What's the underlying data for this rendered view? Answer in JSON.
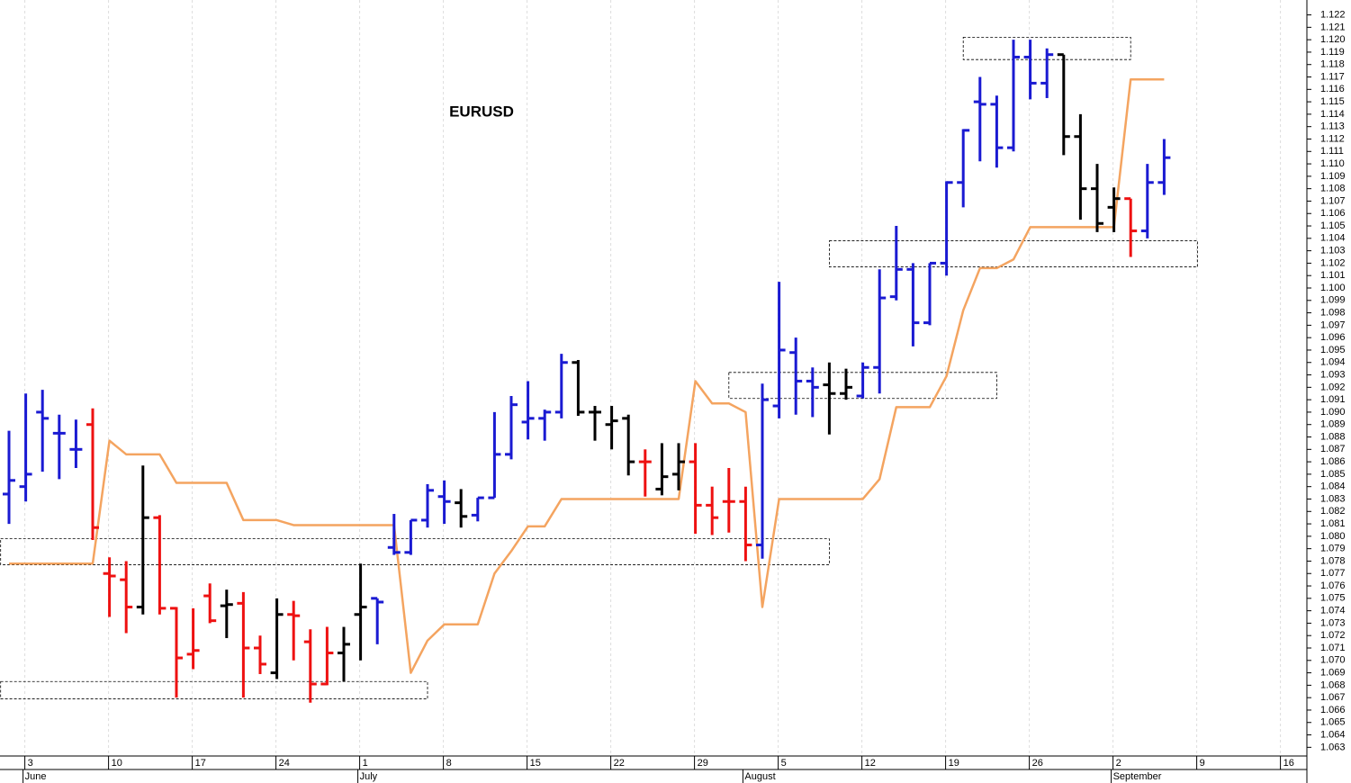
{
  "chart_data": {
    "type": "ohlc",
    "title": "EURUSD",
    "categories": [
      null,
      "3",
      null,
      null,
      null,
      null,
      "10",
      null,
      null,
      null,
      null,
      "17",
      null,
      null,
      null,
      null,
      "24",
      null,
      null,
      null,
      null,
      "1",
      null,
      null,
      null,
      null,
      "8",
      null,
      null,
      null,
      null,
      "15",
      null,
      null,
      null,
      null,
      "22",
      null,
      null,
      null,
      null,
      "29",
      null,
      null,
      null,
      null,
      "5",
      null,
      null,
      null,
      null,
      "12",
      null,
      null,
      null,
      null,
      "19",
      null,
      null,
      null,
      null,
      "26",
      null,
      null,
      null,
      null,
      "2",
      null,
      null,
      null,
      null,
      "9",
      null,
      null,
      null,
      null,
      "16",
      null
    ],
    "months": [
      null,
      "June",
      null,
      null,
      null,
      null,
      null,
      null,
      null,
      null,
      null,
      null,
      null,
      null,
      null,
      null,
      null,
      null,
      null,
      null,
      null,
      "July",
      null,
      null,
      null,
      null,
      null,
      null,
      null,
      null,
      null,
      null,
      null,
      null,
      null,
      null,
      null,
      null,
      null,
      null,
      null,
      null,
      null,
      null,
      "August",
      null,
      null,
      null,
      null,
      null,
      null,
      null,
      null,
      null,
      null,
      null,
      null,
      null,
      null,
      null,
      null,
      null,
      null,
      null,
      null,
      null,
      "September",
      null,
      null,
      null,
      null,
      null,
      null,
      null,
      null,
      null,
      null,
      null
    ],
    "open": [
      1.0834,
      1.084,
      1.09,
      1.0883,
      1.087,
      1.089,
      1.077,
      1.0765,
      1.0743,
      1.0815,
      1.0742,
      1.0705,
      1.0752,
      1.0744,
      1.0746,
      1.071,
      1.069,
      1.0737,
      1.0715,
      1.0681,
      1.0706,
      1.0737,
      1.075,
      1.0791,
      1.0787,
      1.0813,
      1.0832,
      1.0827,
      1.0817,
      1.0831,
      1.0866,
      1.0892,
      1.0895,
      1.09,
      1.094,
      1.09,
      1.089,
      1.0895,
      1.086,
      1.0838,
      1.085,
      1.086,
      1.0825,
      1.0828,
      1.0828,
      1.0793,
      1.0905,
      1.0948,
      1.0925,
      1.0922,
      1.0915,
      1.0913,
      1.0936,
      1.0993,
      1.1015,
      1.0972,
      1.102,
      1.1085,
      1.115,
      1.1148,
      1.1113,
      1.1186,
      1.1165,
      1.1188,
      1.1122,
      1.108,
      1.1065,
      1.1072,
      1.1046,
      1.1085,
      null,
      null,
      null,
      null,
      null,
      null,
      null,
      null
    ],
    "high": [
      1.0885,
      1.0915,
      1.0918,
      1.0898,
      1.0894,
      1.0903,
      1.0783,
      1.078,
      1.0857,
      1.0817,
      1.0743,
      1.0742,
      1.0762,
      1.0757,
      1.0755,
      1.072,
      1.075,
      1.0748,
      1.0725,
      1.0727,
      1.0727,
      1.0778,
      1.075,
      1.0818,
      1.0813,
      1.0842,
      1.0845,
      1.0838,
      1.0831,
      1.09,
      1.0913,
      1.0925,
      1.0902,
      1.0947,
      1.0942,
      1.0905,
      1.0905,
      1.0898,
      1.087,
      1.0875,
      1.0875,
      1.0875,
      1.084,
      1.0855,
      1.084,
      1.0923,
      1.1005,
      1.096,
      1.0936,
      1.094,
      1.0935,
      1.094,
      1.1015,
      1.105,
      1.102,
      1.102,
      1.1086,
      1.1128,
      1.117,
      1.1155,
      1.12,
      1.12,
      1.1193,
      1.1188,
      1.114,
      1.11,
      1.1081,
      1.1072,
      1.11,
      1.112,
      null,
      null,
      null,
      null,
      null,
      null,
      null,
      null
    ],
    "low": [
      1.081,
      1.0828,
      1.0852,
      1.0846,
      1.0855,
      1.0797,
      1.0735,
      1.0722,
      1.0737,
      1.0737,
      1.067,
      1.0693,
      1.073,
      1.0718,
      1.067,
      1.0689,
      1.0685,
      1.07,
      1.0666,
      1.068,
      1.0683,
      1.07,
      1.0713,
      1.0785,
      1.0785,
      1.0807,
      1.081,
      1.0807,
      1.0812,
      1.0831,
      1.0862,
      1.0878,
      1.0877,
      1.0895,
      1.0897,
      1.0877,
      1.087,
      1.0849,
      1.0832,
      1.0833,
      1.0837,
      1.0802,
      1.0801,
      1.0803,
      1.078,
      1.0782,
      1.0895,
      1.0898,
      1.0896,
      1.0882,
      1.091,
      1.0911,
      1.0915,
      1.099,
      1.0953,
      1.097,
      1.101,
      1.1065,
      1.1102,
      1.1097,
      1.111,
      1.1152,
      1.1153,
      1.1107,
      1.1055,
      1.1045,
      1.1045,
      1.1025,
      1.104,
      1.1075,
      null,
      null,
      null,
      null,
      null,
      null,
      null,
      null
    ],
    "close": [
      1.0845,
      1.085,
      1.0895,
      1.0883,
      1.087,
      1.0807,
      1.0768,
      1.0743,
      1.0815,
      1.0742,
      1.0702,
      1.0708,
      1.0732,
      1.0745,
      1.071,
      1.0697,
      1.0737,
      1.0736,
      1.0681,
      1.0706,
      1.0713,
      1.0743,
      1.0747,
      1.0787,
      1.0813,
      1.0837,
      1.0828,
      1.0816,
      1.0831,
      1.0866,
      1.0906,
      1.0895,
      1.09,
      1.094,
      1.09,
      1.09,
      1.0893,
      1.086,
      1.086,
      1.0848,
      1.086,
      1.0825,
      1.0815,
      1.0828,
      1.0793,
      1.091,
      1.095,
      1.0925,
      1.092,
      1.0915,
      1.092,
      1.0936,
      1.0992,
      1.1015,
      1.0972,
      1.102,
      1.1085,
      1.1127,
      1.1148,
      1.1113,
      1.1186,
      1.1165,
      1.1188,
      1.1122,
      1.108,
      1.1052,
      1.1072,
      1.1046,
      1.1085,
      1.1105,
      null,
      null,
      null,
      null,
      null,
      null,
      null,
      null
    ],
    "bar_colors": [
      "B",
      "B",
      "B",
      "B",
      "B",
      "R",
      "R",
      "R",
      "K",
      "R",
      "R",
      "R",
      "R",
      "K",
      "R",
      "R",
      "K",
      "R",
      "R",
      "R",
      "K",
      "K",
      "B",
      "B",
      "B",
      "B",
      "B",
      "K",
      "B",
      "B",
      "B",
      "B",
      "B",
      "B",
      "K",
      "K",
      "K",
      "K",
      "R",
      "K",
      "K",
      "R",
      "R",
      "R",
      "R",
      "B",
      "B",
      "B",
      "B",
      "K",
      "K",
      "B",
      "B",
      "B",
      "B",
      "B",
      "B",
      "B",
      "B",
      "B",
      "B",
      "B",
      "B",
      "K",
      "K",
      "K",
      "K",
      "R",
      "B",
      "B",
      null,
      null,
      null,
      null,
      null,
      null,
      null,
      null
    ],
    "colors": {
      "B": "#1a1ad2",
      "R": "#ee1111",
      "K": "#000000"
    },
    "line": {
      "color": "#f4a460",
      "values": [
        1.0778,
        1.0778,
        1.0778,
        1.0778,
        1.0778,
        1.0778,
        1.0877,
        1.0866,
        1.0866,
        1.0866,
        1.0843,
        1.0843,
        1.0843,
        1.0843,
        1.0813,
        1.0813,
        1.0813,
        1.0809,
        1.0809,
        1.0809,
        1.0809,
        1.0809,
        1.0809,
        1.0809,
        1.069,
        1.0716,
        1.0729,
        1.0729,
        1.0729,
        1.077,
        1.0788,
        1.0808,
        1.0808,
        1.083,
        1.083,
        1.083,
        1.083,
        1.083,
        1.083,
        1.083,
        1.083,
        1.0925,
        1.0907,
        1.0907,
        1.09,
        1.0743,
        1.083,
        1.083,
        1.083,
        1.083,
        1.083,
        1.083,
        1.0846,
        1.0904,
        1.0904,
        1.0904,
        1.0929,
        1.0982,
        1.1016,
        1.1016,
        1.1023,
        1.1049,
        1.1049,
        1.1049,
        1.1049,
        1.1049,
        1.1049,
        1.1168,
        1.1168,
        1.1168,
        null,
        null,
        null,
        null,
        null,
        null,
        null,
        null
      ]
    },
    "zones": [
      {
        "from": -0.5,
        "to": 25,
        "low": 1.0669,
        "high": 1.0683
      },
      {
        "from": -0.5,
        "to": 49,
        "low": 1.0777,
        "high": 1.0798
      },
      {
        "from": 43,
        "to": 59,
        "low": 1.0911,
        "high": 1.0932
      },
      {
        "from": 49,
        "to": 71,
        "low": 1.1017,
        "high": 1.1038
      },
      {
        "from": 57,
        "to": 67,
        "low": 1.1184,
        "high": 1.1202
      }
    ],
    "ylim": [
      1.0623,
      1.1232
    ],
    "yticks": [
      1.063,
      1.064,
      1.065,
      1.066,
      1.067,
      1.068,
      1.069,
      {
        "value": 1.07,
        "label": "1.070"
      },
      1.071,
      1.072,
      1.073,
      1.074,
      1.075,
      1.076,
      1.077,
      1.078,
      1.079,
      {
        "value": 1.08,
        "label": "1.080"
      },
      1.081,
      1.082,
      1.083,
      1.084,
      1.085,
      1.086,
      1.087,
      1.088,
      1.089,
      {
        "value": 1.09,
        "label": "1.090"
      },
      1.091,
      1.092,
      1.093,
      1.094,
      1.095,
      1.096,
      1.097,
      1.098,
      1.099,
      {
        "value": 1.1,
        "label": "1.100"
      },
      1.101,
      1.102,
      1.103,
      1.104,
      1.105,
      1.106,
      1.107,
      1.108,
      1.109,
      {
        "value": 1.11,
        "label": "1.110"
      },
      1.111,
      1.112,
      1.113,
      1.114,
      1.115,
      1.116,
      1.117,
      1.118,
      1.119,
      {
        "value": 1.12,
        "label": "1.120"
      },
      1.121,
      1.122
    ],
    "grid": true
  }
}
